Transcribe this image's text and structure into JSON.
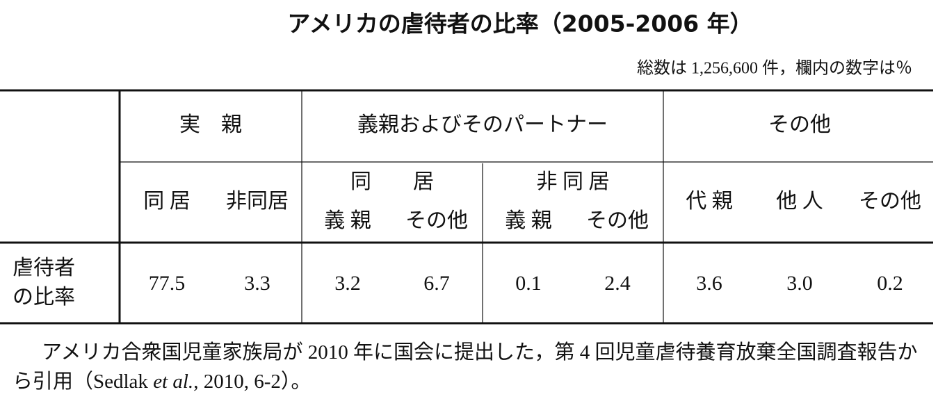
{
  "title": "アメリカの虐待者の比率（2005-2006 年）",
  "note": "総数は 1,256,600 件，欄内の数字は％",
  "table": {
    "groups": [
      "実　親",
      "義親およびそのパートナー",
      "その他"
    ],
    "subgroups": [
      "同　　居",
      "非 同 居"
    ],
    "columns": [
      "同 居",
      "非同居",
      "義 親",
      "その他",
      "義 親",
      "その他",
      "代 親",
      "他 人",
      "その他"
    ],
    "rows": [
      {
        "label": [
          "虐待者",
          "の比率"
        ],
        "values": [
          "77.5",
          "3.3",
          "3.2",
          "6.7",
          "0.1",
          "2.4",
          "3.6",
          "3.0",
          "0.2"
        ]
      }
    ]
  },
  "caption": {
    "text": "アメリカ合衆国児童家族局が 2010 年に国会に提出した，第 4 回児童虐待養育放棄全国調査報告から引用（Sedlak ",
    "italic": "et al.",
    "rest": ", 2010, 6-2）。"
  }
}
